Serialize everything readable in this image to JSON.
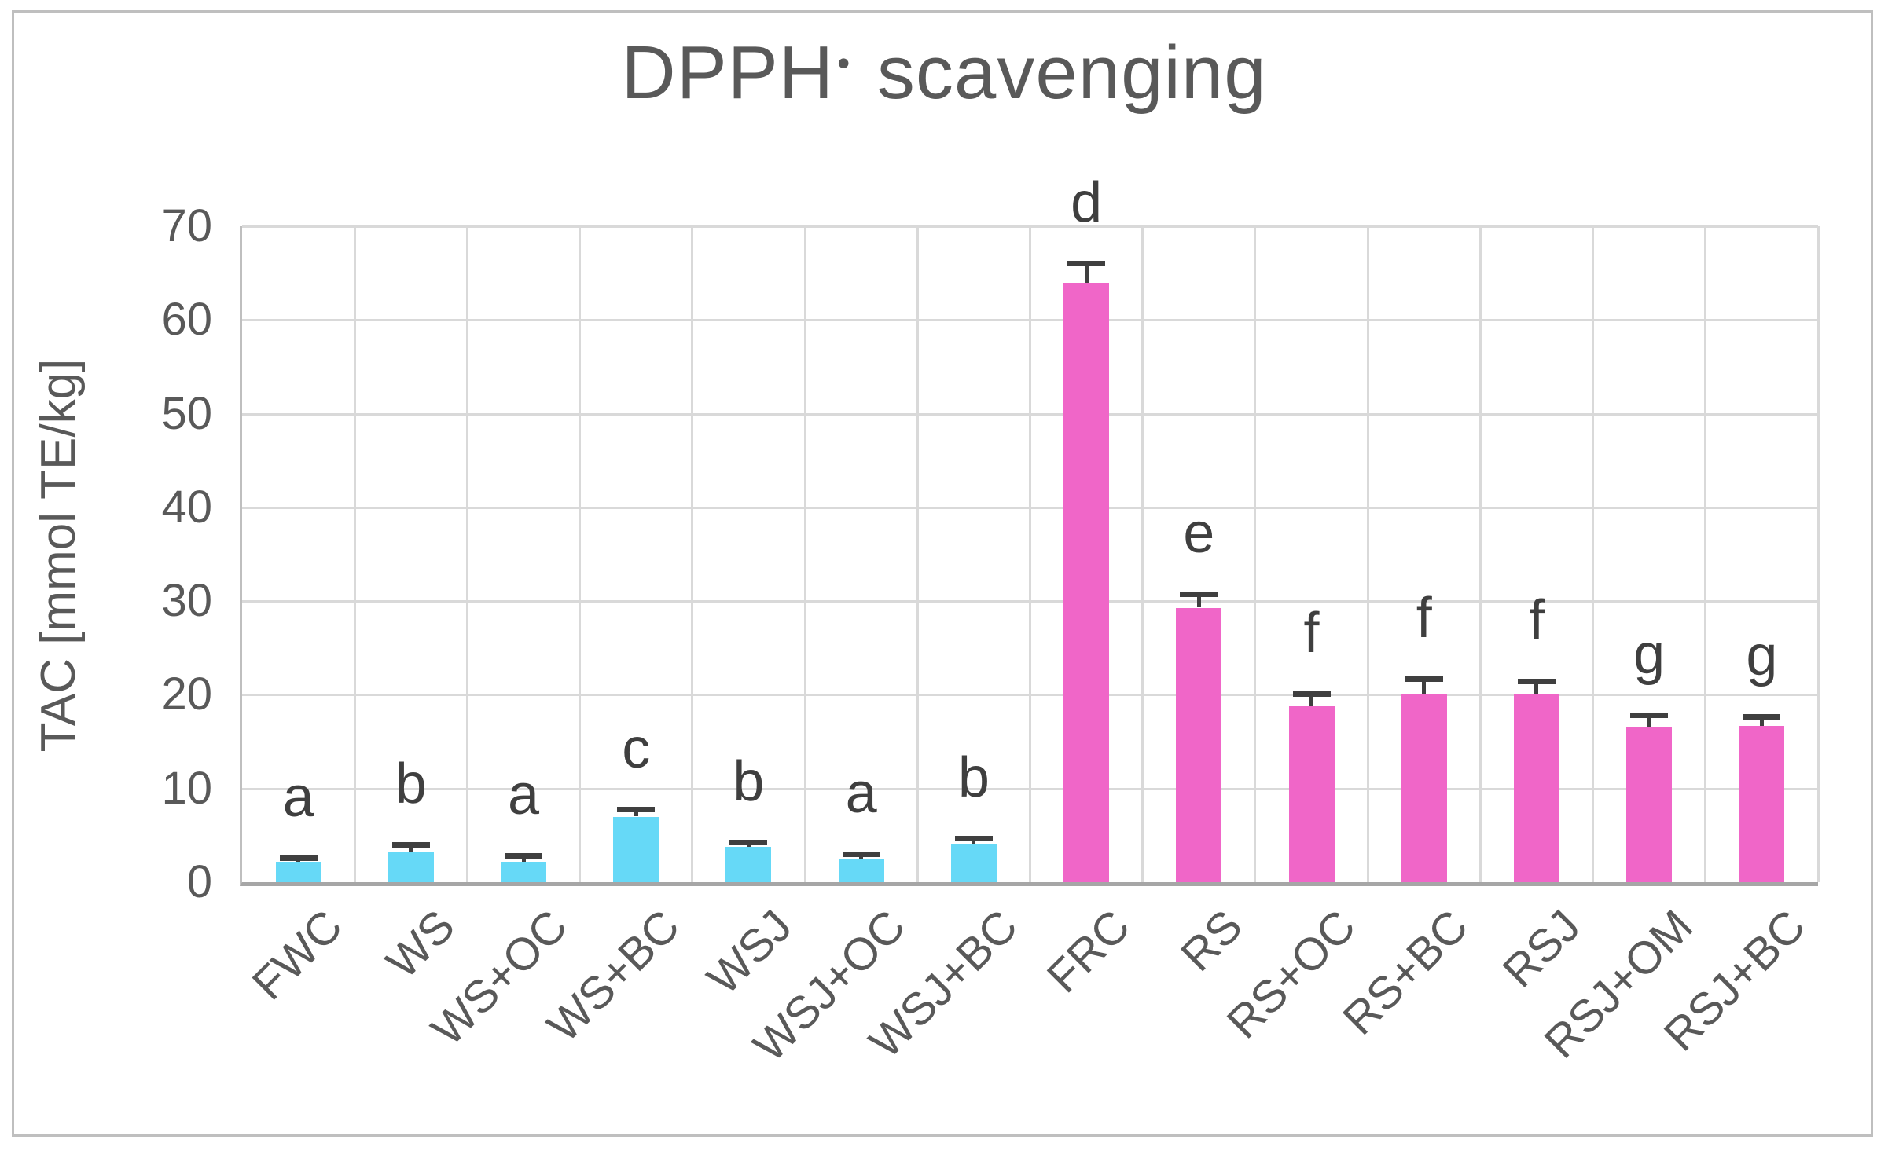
{
  "title": {
    "prefix": "DPPH",
    "radical": "•",
    "suffix": " scavenging"
  },
  "axes": {
    "y_label": "TAC [mmol TE/kg]"
  },
  "chart_data": {
    "type": "bar",
    "title": "DPPH• scavenging",
    "xlabel": "",
    "ylabel": "TAC [mmol TE/kg]",
    "ylim": [
      0,
      70
    ],
    "y_ticks": [
      0,
      10,
      20,
      30,
      40,
      50,
      60,
      70
    ],
    "grid": true,
    "legend": false,
    "x_label_rotation_deg": 45,
    "categories": [
      "FWC",
      "WS",
      "WS+OC",
      "WS+BC",
      "WSJ",
      "WSJ+OC",
      "WSJ+BC",
      "FRC",
      "RS",
      "RS+OC",
      "RS+BC",
      "RSJ",
      "RSJ+OM",
      "RSJ+BC"
    ],
    "values": [
      2.2,
      3.2,
      2.2,
      7.0,
      3.8,
      2.5,
      4.1,
      64.0,
      29.3,
      18.8,
      20.1,
      20.1,
      16.6,
      16.7
    ],
    "errors": [
      0.3,
      0.7,
      0.6,
      0.7,
      0.4,
      0.4,
      0.5,
      2.0,
      1.4,
      1.2,
      1.5,
      1.3,
      1.2,
      0.9
    ],
    "significance_letters": [
      "a",
      "b",
      "a",
      "c",
      "b",
      "a",
      "b",
      "d",
      "e",
      "f",
      "f",
      "f",
      "g",
      "g"
    ],
    "series_groups": [
      "cyan",
      "cyan",
      "cyan",
      "cyan",
      "cyan",
      "cyan",
      "cyan",
      "magenta",
      "magenta",
      "magenta",
      "magenta",
      "magenta",
      "magenta",
      "magenta"
    ],
    "palette": {
      "cyan": "#66D9F7",
      "magenta": "#F066C8"
    },
    "style_colors": {
      "gridline": "#D9D9D9",
      "axis_line": "#A6A6A6",
      "frame_border": "#BFBFBF",
      "text": "#595959",
      "annotation": "#3F3F3F"
    }
  }
}
